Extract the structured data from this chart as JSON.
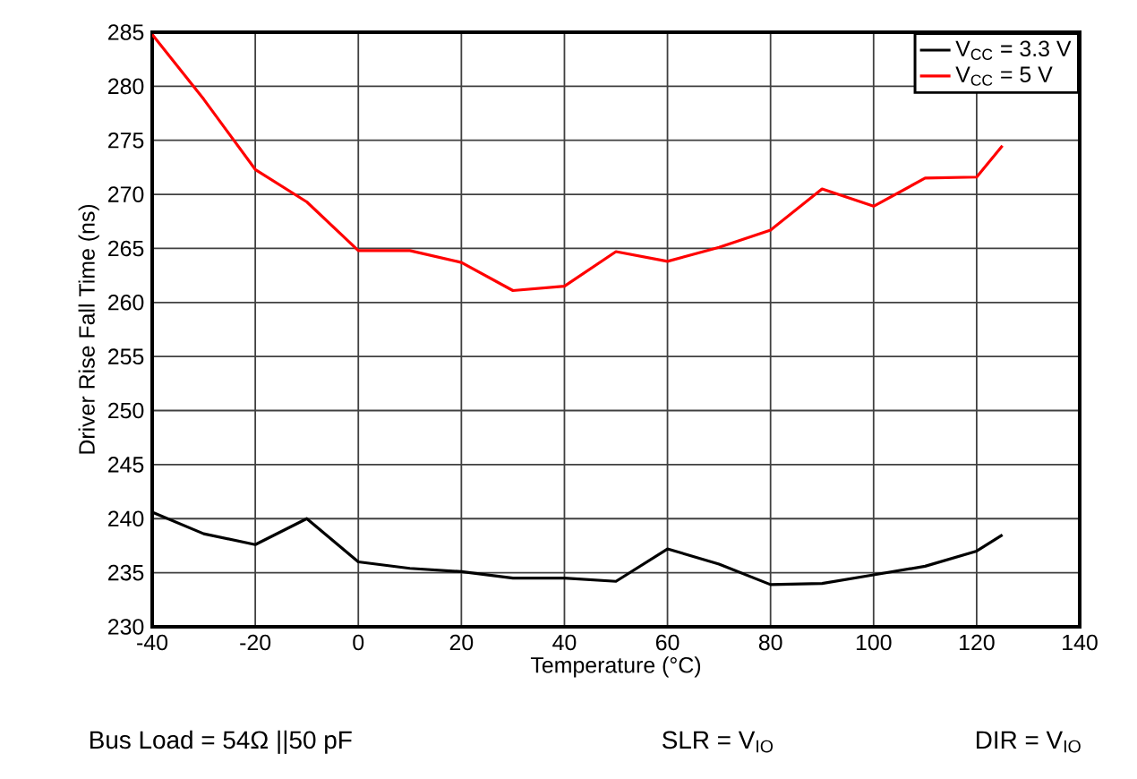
{
  "chart_data": {
    "type": "line",
    "xlabel": "Temperature (°C)",
    "ylabel": "Driver Rise Fall Time (ns)",
    "xlim": [
      -40,
      140
    ],
    "xticks": [
      -40,
      -20,
      0,
      20,
      40,
      60,
      80,
      100,
      120,
      140
    ],
    "ylim": [
      230,
      285
    ],
    "yticks": [
      230,
      235,
      240,
      245,
      250,
      255,
      260,
      265,
      270,
      275,
      280,
      285
    ],
    "grid": true,
    "legend": "top right",
    "marker": "none",
    "line_style": "solid",
    "x": [
      -40,
      -30,
      -20,
      -10,
      0,
      10,
      20,
      30,
      40,
      50,
      60,
      70,
      80,
      90,
      100,
      110,
      120,
      125
    ],
    "series": [
      {
        "name": "V$_{CC}$ = 3.3 V",
        "color": "#000000",
        "values": [
          240.6,
          238.6,
          237.6,
          240.0,
          236.0,
          235.4,
          235.1,
          234.5,
          234.5,
          234.2,
          237.2,
          235.8,
          233.9,
          234.0,
          234.8,
          235.6,
          237.0,
          238.5
        ]
      },
      {
        "name": "V$_{CC}$ = 5 V",
        "color": "#ff0000",
        "values": [
          284.8,
          278.8,
          272.3,
          269.3,
          264.8,
          264.8,
          263.7,
          261.1,
          261.5,
          264.7,
          263.8,
          265.1,
          266.7,
          270.5,
          268.9,
          271.5,
          271.6,
          274.5
        ]
      }
    ],
    "annotations": [
      "Bus Load = 54Ω ||50 pF",
      "SLR = V$_{IO}$",
      "DIR = V$_{IO}$"
    ]
  }
}
